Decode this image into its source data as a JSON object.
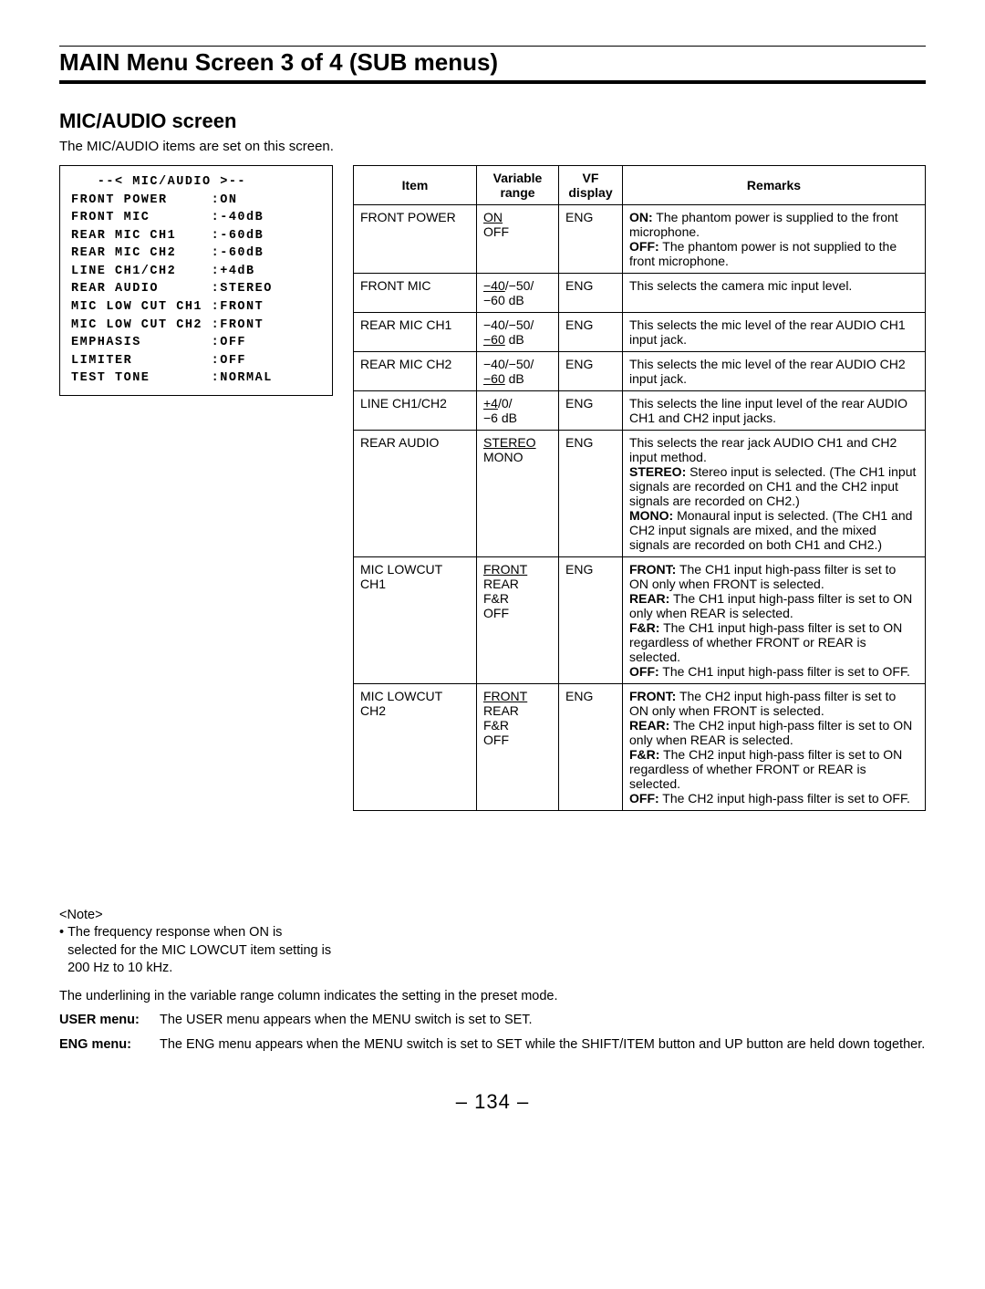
{
  "page_title": "MAIN Menu Screen 3 of 4 (SUB menus)",
  "section_title": "MIC/AUDIO screen",
  "section_desc": "The MIC/AUDIO items are set on this screen.",
  "screen_lines": "   --< MIC/AUDIO >--\nFRONT POWER     :ON\nFRONT MIC       :-40dB\nREAR MIC CH1    :-60dB\nREAR MIC CH2    :-60dB\nLINE CH1/CH2    :+4dB\nREAR AUDIO      :STEREO\nMIC LOW CUT CH1 :FRONT\nMIC LOW CUT CH2 :FRONT\nEMPHASIS        :OFF\nLIMITER         :OFF\nTEST TONE       :NORMAL",
  "note": {
    "head": "<Note>",
    "body": "The frequency response when ON is selected for the MIC LOWCUT item setting is 200 Hz to 10 kHz."
  },
  "table": {
    "headers": [
      "Item",
      "Variable range",
      "VF display",
      "Remarks"
    ],
    "rows": [
      {
        "item": "FRONT POWER",
        "var_html": "<span class='u'>ON</span><br>OFF",
        "vf": "ENG",
        "remark_html": "<b>ON:</b> The phantom power is supplied to the front microphone.<br><b>OFF:</b> The phantom power is not supplied to the front microphone."
      },
      {
        "item": "FRONT MIC",
        "var_html": "<span class='u'>−40</span>/−50/<br>−60 dB",
        "vf": "ENG",
        "remark_html": "This selects the camera mic input level."
      },
      {
        "item": "REAR MIC CH1",
        "var_html": "−40/−50/<br><span class='u'>−60</span> dB",
        "vf": "ENG",
        "remark_html": "This selects the mic level of the rear AUDIO CH1 input jack."
      },
      {
        "item": "REAR MIC CH2",
        "var_html": "−40/−50/<br><span class='u'>−60</span> dB",
        "vf": "ENG",
        "remark_html": "This selects the mic level of the rear AUDIO CH2 input jack."
      },
      {
        "item": "LINE CH1/CH2",
        "var_html": "<span class='u'>+4</span>/0/<br>−6 dB",
        "vf": "ENG",
        "remark_html": "This selects the line input level of the rear AUDIO CH1 and CH2 input jacks."
      },
      {
        "item": "REAR AUDIO",
        "var_html": "<span class='u'>STEREO</span><br>MONO",
        "vf": "ENG",
        "remark_html": "This selects the rear jack AUDIO CH1 and CH2 input method.<br><b>STEREO:</b> Stereo input is selected. (The CH1 input signals are recorded on CH1 and the CH2 input signals are recorded on CH2.)<br><b>MONO:</b> Monaural input is selected. (The CH1 and CH2 input signals are mixed, and the mixed signals are recorded on both CH1 and CH2.)"
      },
      {
        "item": "MIC LOWCUT CH1",
        "var_html": "<span class='u'>FRONT</span><br>REAR<br>F&R<br>OFF",
        "vf": "ENG",
        "remark_html": "<b>FRONT:</b> The CH1 input high-pass filter is set to ON only when FRONT is selected.<br><b>REAR:</b> The CH1 input high-pass filter is set to ON only when REAR is selected.<br><b>F&R:</b> The CH1 input high-pass filter is set to ON regardless of whether FRONT or REAR is selected.<br><b>OFF:</b> The CH1 input high-pass filter is set to OFF."
      },
      {
        "item": "MIC LOWCUT CH2",
        "var_html": "<span class='u'>FRONT</span><br>REAR<br>F&R<br>OFF",
        "vf": "ENG",
        "remark_html": "<b>FRONT:</b> The CH2 input high-pass filter is set to ON only when FRONT is selected.<br><b>REAR:</b> The CH2 input high-pass filter is set to ON only when REAR is selected.<br><b>F&R:</b> The CH2 input high-pass filter is set to ON regardless of whether FRONT or REAR is selected.<br><b>OFF:</b> The CH2 input high-pass filter is set to OFF."
      }
    ]
  },
  "underline_note": "The underlining in the variable range column indicates the setting in the preset mode.",
  "footer": {
    "user_label": "USER menu:",
    "user_text": "The USER menu appears when the MENU switch is set to SET.",
    "eng_label": "ENG menu:",
    "eng_text": "The ENG menu appears when the MENU switch is set to SET while the SHIFT/ITEM button and UP button are held down together."
  },
  "page_number": "– 134 –"
}
